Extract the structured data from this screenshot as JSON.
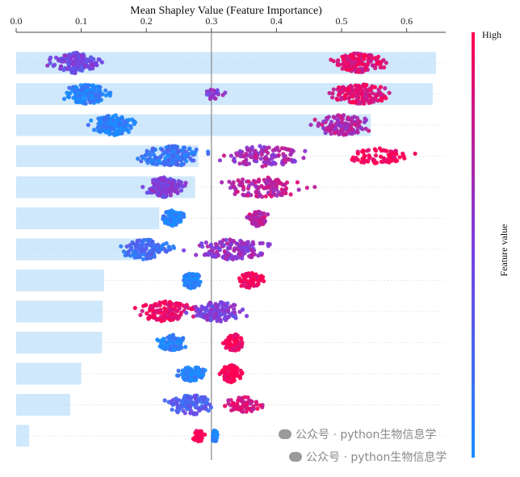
{
  "chart_data": {
    "type": "bar",
    "subtype": "shap-summary-beeswarm-with-mean-bars",
    "title": "Mean Shapley Value (Feature Importance)",
    "x_ticks": [
      "0.0",
      "0.1",
      "0.2",
      "0.3",
      "0.4",
      "0.5",
      "0.6"
    ],
    "xlim": [
      0,
      0.66
    ],
    "colorbar": {
      "label": "Feature value",
      "high": "High",
      "low_color": "#1a8cff",
      "high_color": "#ff0052"
    },
    "bar_color": "#cfe8fb",
    "reference_line": 0.3,
    "grid": "dotted horizontal",
    "features": [
      {
        "mean_value": 0.645,
        "swarm": [
          {
            "center": 0.09,
            "spread": 0.05,
            "hue": 0.45,
            "density": 1.0
          },
          {
            "center": 0.525,
            "spread": 0.05,
            "hue": 0.9,
            "density": 1.0
          }
        ]
      },
      {
        "mean_value": 0.64,
        "swarm": [
          {
            "center": 0.11,
            "spread": 0.045,
            "hue": 0.05,
            "density": 1.0
          },
          {
            "center": 0.3,
            "spread": 0.03,
            "hue": 0.55,
            "density": 0.15
          },
          {
            "center": 0.53,
            "spread": 0.06,
            "hue": 0.9,
            "density": 1.0
          }
        ]
      },
      {
        "mean_value": 0.545,
        "swarm": [
          {
            "center": 0.15,
            "spread": 0.045,
            "hue": 0.05,
            "density": 1.0
          },
          {
            "center": 0.5,
            "spread": 0.06,
            "hue": 0.7,
            "density": 0.9
          }
        ]
      },
      {
        "mean_value": 0.28,
        "swarm": [
          {
            "center": 0.24,
            "spread": 0.07,
            "hue": 0.15,
            "density": 1.0
          },
          {
            "center": 0.38,
            "spread": 0.09,
            "hue": 0.65,
            "density": 0.8
          },
          {
            "center": 0.56,
            "spread": 0.07,
            "hue": 1.0,
            "density": 0.5
          }
        ]
      },
      {
        "mean_value": 0.275,
        "swarm": [
          {
            "center": 0.23,
            "spread": 0.04,
            "hue": 0.5,
            "density": 1.0
          },
          {
            "center": 0.38,
            "spread": 0.09,
            "hue": 0.75,
            "density": 0.8
          }
        ]
      },
      {
        "mean_value": 0.22,
        "swarm": [
          {
            "center": 0.24,
            "spread": 0.025,
            "hue": 0.05,
            "density": 0.5
          },
          {
            "center": 0.37,
            "spread": 0.02,
            "hue": 0.75,
            "density": 0.5
          }
        ]
      },
      {
        "mean_value": 0.21,
        "swarm": [
          {
            "center": 0.2,
            "spread": 0.05,
            "hue": 0.2,
            "density": 0.8
          },
          {
            "center": 0.33,
            "spread": 0.08,
            "hue": 0.6,
            "density": 1.0
          }
        ]
      },
      {
        "mean_value": 0.135,
        "swarm": [
          {
            "center": 0.27,
            "spread": 0.02,
            "hue": 0.05,
            "density": 0.5
          },
          {
            "center": 0.36,
            "spread": 0.025,
            "hue": 1.0,
            "density": 0.5
          }
        ]
      },
      {
        "mean_value": 0.133,
        "swarm": [
          {
            "center": 0.23,
            "spread": 0.06,
            "hue": 0.95,
            "density": 0.8
          },
          {
            "center": 0.31,
            "spread": 0.06,
            "hue": 0.5,
            "density": 0.9
          }
        ]
      },
      {
        "mean_value": 0.132,
        "swarm": [
          {
            "center": 0.24,
            "spread": 0.035,
            "hue": 0.05,
            "density": 0.5
          },
          {
            "center": 0.335,
            "spread": 0.02,
            "hue": 1.0,
            "density": 0.6
          }
        ]
      },
      {
        "mean_value": 0.1,
        "swarm": [
          {
            "center": 0.27,
            "spread": 0.03,
            "hue": 0.05,
            "density": 0.5
          },
          {
            "center": 0.33,
            "spread": 0.025,
            "hue": 1.0,
            "density": 0.6
          }
        ]
      },
      {
        "mean_value": 0.083,
        "swarm": [
          {
            "center": 0.27,
            "spread": 0.05,
            "hue": 0.3,
            "density": 0.8
          },
          {
            "center": 0.35,
            "spread": 0.04,
            "hue": 0.85,
            "density": 0.5
          }
        ]
      },
      {
        "mean_value": 0.02,
        "swarm": [
          {
            "center": 0.28,
            "spread": 0.012,
            "hue": 1.0,
            "density": 0.25
          },
          {
            "center": 0.305,
            "spread": 0.005,
            "hue": 0.05,
            "density": 0.3
          }
        ]
      }
    ]
  },
  "watermark": {
    "text": "公众号 · python生物信息学"
  }
}
